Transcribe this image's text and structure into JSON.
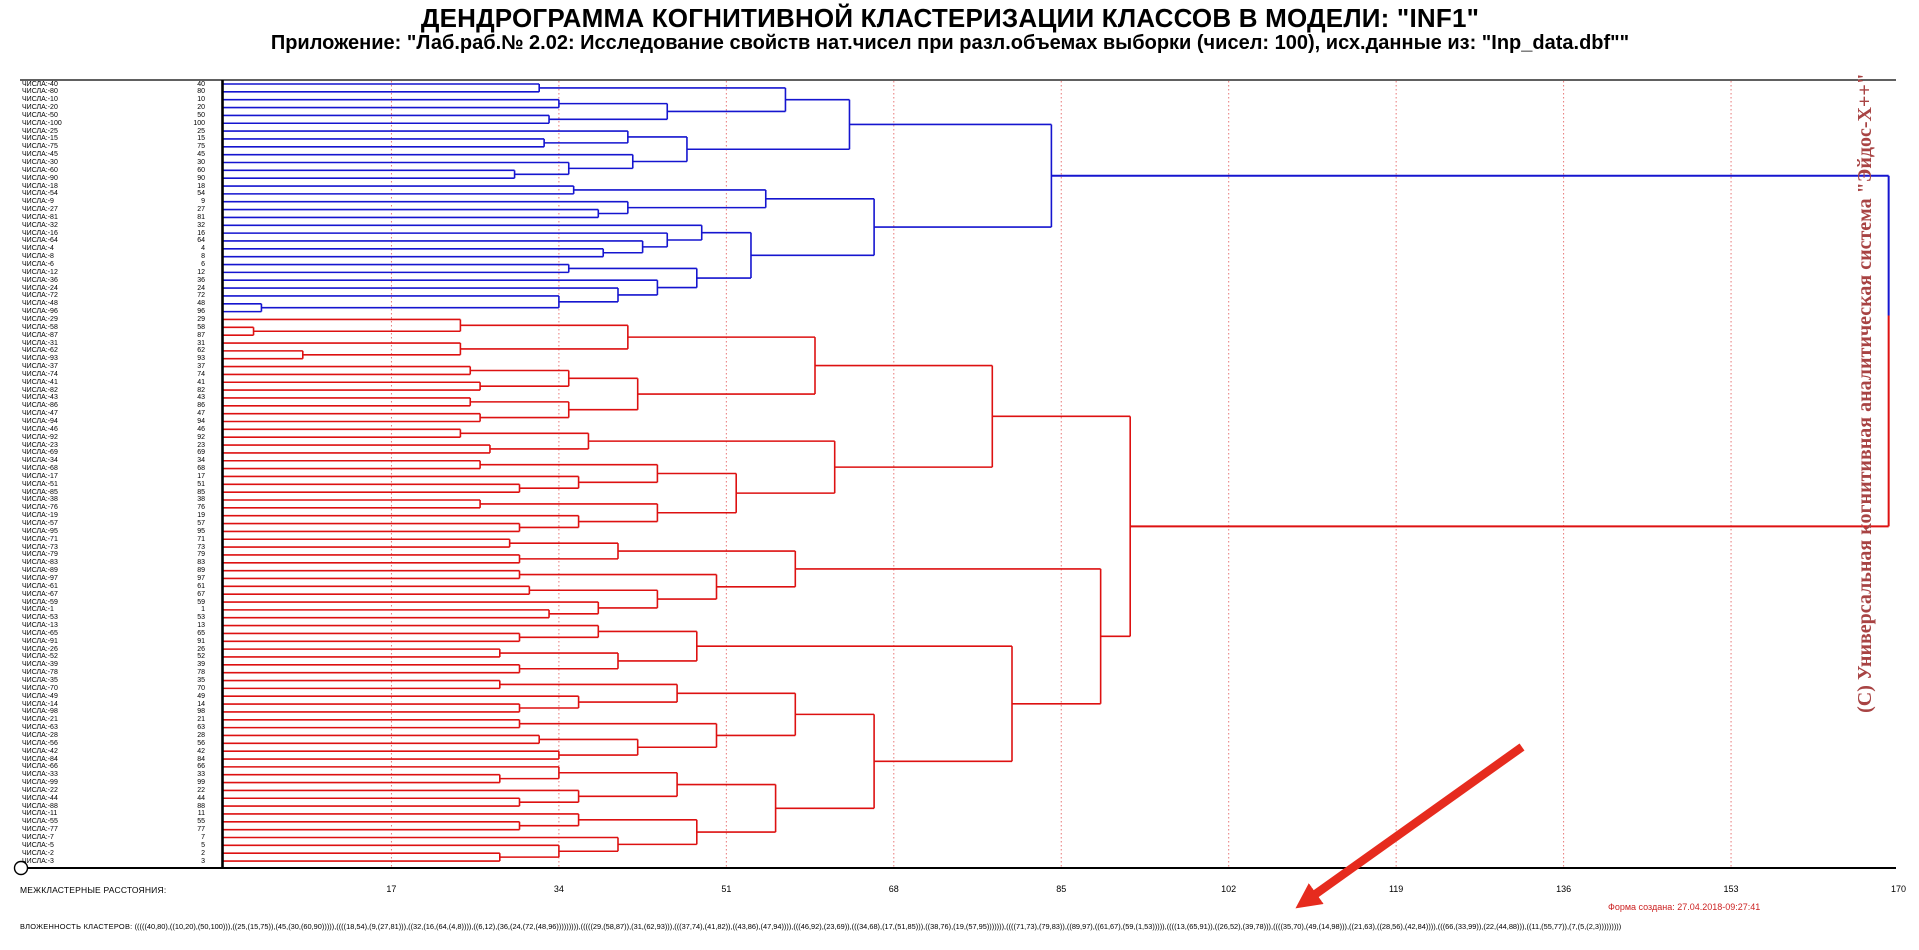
{
  "header": {
    "title": "ДЕНДРОГРАММА КОГНИТИВНОЙ КЛАСТЕРИЗАЦИИ КЛАССОВ В МОДЕЛИ: \"INF1\"",
    "subtitle": "Приложение: \"Лаб.раб.№ 2.02: Исследование свойств нат.чисел при разл.объемах выборки (чисел: 100), исх.данные из: \"Inp_data.dbf\"\""
  },
  "watermark": "(С) Универсальная когнитивная аналитическая система \"Эйдос-Х++\"",
  "footer": {
    "axis_label": "МЕЖКЛАСТЕРНЫЕ РАССТОЯНИЯ:",
    "created_label": "Форма создана: 27.04.2018-09:27:41",
    "nesting_label": "ВЛОЖЕННОСТЬ КЛАСТЕРОВ:",
    "nesting_text": "(((((40,80),((10,20),(50,100))),((25,(15,75)),(45,(30,(60,90))))),((((18,54),(9,(27,81))),((32,(16,(64,(4,8)))),((6,12),(36,(24,(72,(48,96))))))))),(((((29,(58,87)),(31,(62,93))),(((37,74),(41,82)),((43,86),(47,94)))),(((46,92),(23,69)),(((34,68),(17,(51,85))),((38,76),(19,(57,95))))))),((((71,73),(79,83)),((89,97),((61,67),(59,(1,53))))),((((13,(65,91)),((26,52),(39,78))),((((35,70),(49,(14,98))),((21,63),((28,56),(42,84)))),(((66,(33,99)),(22,(44,88))),((11,(55,77)),(7,(5,(2,3)))))))))"
  },
  "chart_data": {
    "type": "dendrogram",
    "orientation": "horizontal",
    "xlabel": "МЕЖКЛАСТЕРНЫЕ РАССТОЯНИЯ",
    "leaf_label_prefix": "ЧИСЛА:-",
    "leaves": [
      40,
      80,
      10,
      20,
      50,
      100,
      25,
      15,
      75,
      45,
      30,
      60,
      90,
      18,
      54,
      9,
      27,
      81,
      32,
      16,
      64,
      4,
      8,
      6,
      12,
      36,
      24,
      72,
      48,
      96,
      29,
      58,
      87,
      31,
      62,
      93,
      37,
      74,
      41,
      82,
      43,
      86,
      47,
      94,
      46,
      92,
      23,
      69,
      34,
      68,
      17,
      51,
      85,
      38,
      76,
      19,
      57,
      95,
      71,
      73,
      79,
      83,
      89,
      97,
      61,
      67,
      59,
      1,
      53,
      13,
      65,
      91,
      26,
      52,
      39,
      78,
      35,
      70,
      49,
      14,
      98,
      21,
      63,
      28,
      56,
      42,
      84,
      66,
      33,
      99,
      22,
      44,
      88,
      11,
      55,
      77,
      7,
      5,
      2,
      3
    ],
    "ticks": [
      17,
      34,
      51,
      68,
      85,
      102,
      119,
      136,
      153,
      170
    ],
    "xlim": [
      0,
      170
    ],
    "grid": "dotted-red-vertical",
    "colors": {
      "cluster1": "#1515cf",
      "cluster2": "#dd1111",
      "grid": "#e87777",
      "axis": "#000000",
      "watermark": "#a84343",
      "created": "#cc2222",
      "arrow": "#e62b1e"
    },
    "tree": [
      169,
      [
        84,
        [
          63.5,
          [
            57,
            [
              32,
              40,
              80
            ],
            [
              45,
              [
                34,
                10,
                20
              ],
              [
                33,
                50,
                100
              ]
            ]
          ],
          [
            47,
            [
              41,
              25,
              [
                32.5,
                15,
                75
              ]
            ],
            [
              41.5,
              45,
              [
                35,
                30,
                [
                  29.5,
                  60,
                  90
                ]
              ]
            ]
          ]
        ],
        [
          66,
          [
            55,
            [
              35.5,
              18,
              54
            ],
            [
              41,
              9,
              [
                38,
                27,
                81
              ]
            ]
          ],
          [
            53.5,
            [
              48.5,
              32,
              [
                45,
                16,
                [
                  42.5,
                  64,
                  [
                    38.5,
                    4,
                    8
                  ]
                ]
              ]
            ],
            [
              48,
              [
                35,
                6,
                12
              ],
              [
                44,
                36,
                [
                  40,
                  24,
                  [
                    34,
                    72,
                    [
                      3.8,
                      48,
                      96
                    ]
                  ]
                ]
              ]
            ]
          ]
        ]
      ],
      [
        92,
        [
          78,
          [
            60,
            [
              41,
              [
                24,
                29,
                [
                  3,
                  58,
                  87
                ]
              ],
              [
                24,
                31,
                [
                  8,
                  62,
                  93
                ]
              ]
            ],
            [
              42,
              [
                35,
                [
                  25,
                  37,
                  74
                ],
                [
                  26,
                  41,
                  82
                ]
              ],
              [
                35,
                [
                  25,
                  43,
                  86
                ],
                [
                  26,
                  47,
                  94
                ]
              ]
            ]
          ],
          [
            62,
            [
              37,
              [
                24,
                46,
                92
              ],
              [
                27,
                23,
                69
              ]
            ],
            [
              52,
              [
                44,
                [
                  26,
                  34,
                  68
                ],
                [
                  36,
                  17,
                  [
                    30,
                    51,
                    85
                  ]
                ]
              ],
              [
                44,
                [
                  26,
                  38,
                  76
                ],
                [
                  36,
                  19,
                  [
                    30,
                    57,
                    95
                  ]
                ]
              ]
            ]
          ]
        ],
        [
          89,
          [
            58,
            [
              40,
              [
                29,
                71,
                73
              ],
              [
                30,
                79,
                83
              ]
            ],
            [
              50,
              [
                30,
                89,
                97
              ],
              [
                44,
                [
                  31,
                  61,
                  67
                ],
                [
                  38,
                  59,
                  [
                    33,
                    1,
                    53
                  ]
                ]
              ]
            ]
          ],
          [
            80,
            [
              48,
              [
                38,
                13,
                [
                  30,
                  65,
                  91
                ]
              ],
              [
                40,
                [
                  28,
                  26,
                  52
                ],
                [
                  30,
                  39,
                  78
                ]
              ]
            ],
            [
              66,
              [
                58,
                [
                  46,
                  [
                    28,
                    35,
                    70
                  ],
                  [
                    36,
                    49,
                    [
                      30,
                      14,
                      98
                    ]
                  ]
                ],
                [
                  50,
                  [
                    30,
                    21,
                    63
                  ],
                  [
                    42,
                    [
                      32,
                      28,
                      56
                    ],
                    [
                      34,
                      42,
                      84
                    ]
                  ]
                ]
              ],
              [
                56,
                [
                  46,
                  [
                    34,
                    66,
                    [
                      28,
                      33,
                      99
                    ]
                  ],
                  [
                    36,
                    22,
                    [
                      30,
                      44,
                      88
                    ]
                  ]
                ],
                [
                  48,
                  [
                    36,
                    11,
                    [
                      30,
                      55,
                      77
                    ]
                  ],
                  [
                    40,
                    7,
                    [
                      34,
                      5,
                      [
                        28,
                        2,
                        3
                      ]
                    ]
                  ]
                ]
              ]
            ]
          ]
        ]
      ]
    ]
  },
  "annotation_arrow": {
    "from_x": 1522,
    "from_y": 747,
    "to_x": 1310,
    "to_y": 898
  }
}
